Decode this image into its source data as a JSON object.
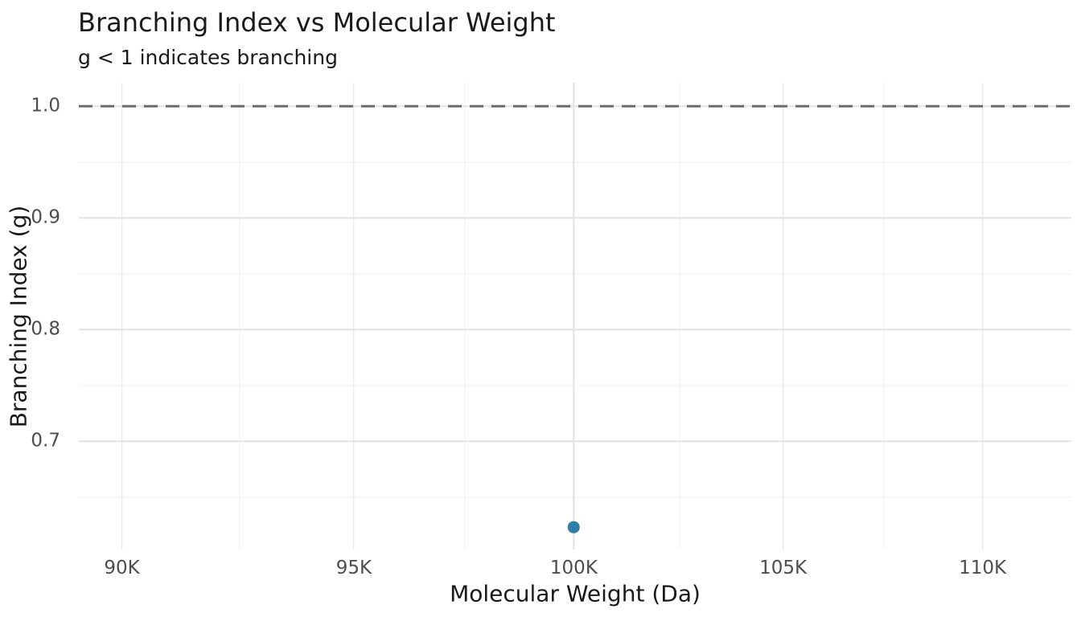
{
  "chart_data": {
    "type": "scatter",
    "title": "Branching Index vs Molecular Weight",
    "subtitle": "g < 1 indicates branching",
    "xlabel": "Molecular Weight (Da)",
    "ylabel": "Branching Index (g)",
    "x_scale": "log10",
    "y_scale": "linear",
    "xlim": [
      89100,
      112300
    ],
    "ylim": [
      0.603,
      1.021
    ],
    "x_ticks": [
      {
        "value": 90000,
        "label": "90K"
      },
      {
        "value": 95000,
        "label": "95K"
      },
      {
        "value": 100000,
        "label": "100K"
      },
      {
        "value": 105000,
        "label": "105K"
      },
      {
        "value": 110000,
        "label": "110K"
      }
    ],
    "x_minor_ticks": [
      92500,
      97500,
      102500,
      107500
    ],
    "y_ticks": [
      {
        "value": 1.0,
        "label": "1.0"
      },
      {
        "value": 0.9,
        "label": "0.9"
      },
      {
        "value": 0.8,
        "label": "0.8"
      },
      {
        "value": 0.7,
        "label": "0.7"
      }
    ],
    "y_minor_ticks": [
      0.95,
      0.85,
      0.75,
      0.65
    ],
    "points": [
      {
        "x": 100000,
        "y": 0.623
      }
    ],
    "reference_line": {
      "y": 1.0,
      "linetype": "dashed"
    },
    "legend": "none",
    "grid": "major and minor gridlines, light gray on white"
  },
  "colors": {
    "background": "#ffffff",
    "text": "#1a1a1a",
    "tick_label": "#4d4d4d",
    "grid_major": "#e2e2e2",
    "grid_minor": "#f0f0f0",
    "reference_line": "#6b6b6b",
    "point": "#2d7fa8"
  }
}
